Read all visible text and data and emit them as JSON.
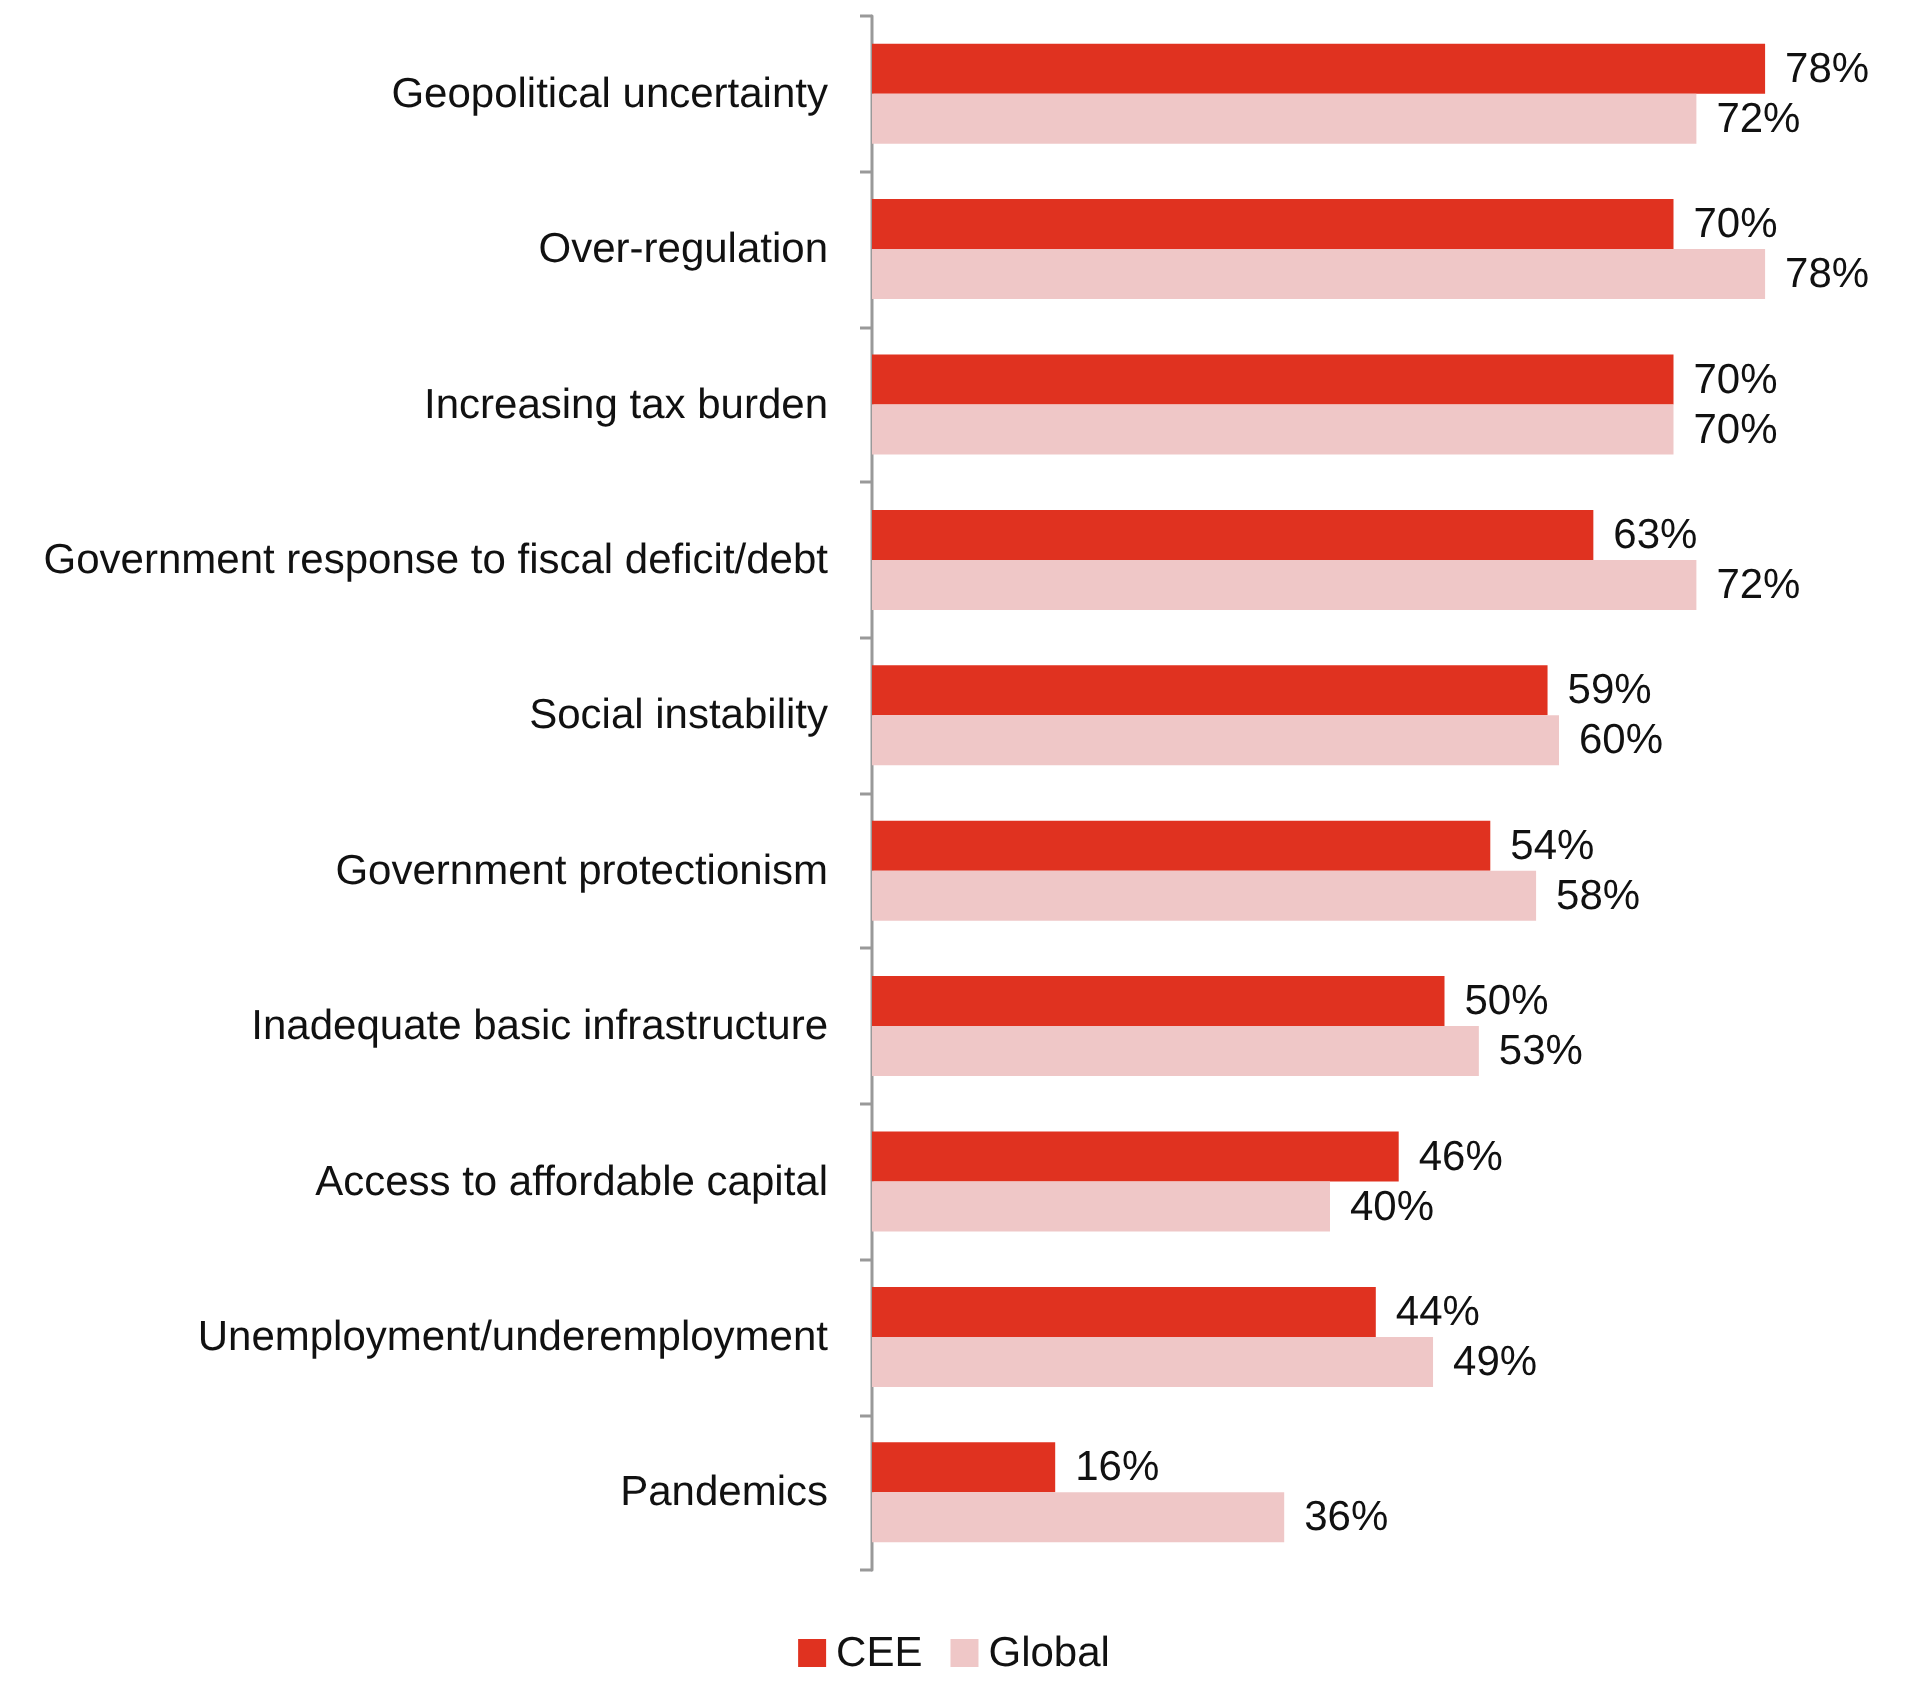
{
  "chart_data": {
    "type": "bar",
    "orientation": "horizontal",
    "categories": [
      "Geopolitical uncertainty",
      "Over-regulation",
      "Increasing tax burden",
      "Government response to fiscal deficit/debt",
      "Social instability",
      "Government protectionism",
      "Inadequate basic infrastructure",
      "Access to affordable capital",
      "Unemployment/underemployment",
      "Pandemics"
    ],
    "series": [
      {
        "name": "CEE",
        "color": "#e03220",
        "values": [
          78,
          70,
          70,
          63,
          59,
          54,
          50,
          46,
          44,
          16
        ],
        "value_labels": [
          "78%",
          "70%",
          "70%",
          "63%",
          "59%",
          "54%",
          "50%",
          "46%",
          "44%",
          "16%"
        ]
      },
      {
        "name": "Global",
        "color": "#efc7c7",
        "values": [
          72,
          78,
          70,
          72,
          60,
          58,
          53,
          40,
          49,
          36
        ],
        "value_labels": [
          "72%",
          "78%",
          "70%",
          "72%",
          "60%",
          "58%",
          "53%",
          "40%",
          "49%",
          "36%"
        ]
      }
    ],
    "tick_labels": "y",
    "legend": "bottom"
  }
}
